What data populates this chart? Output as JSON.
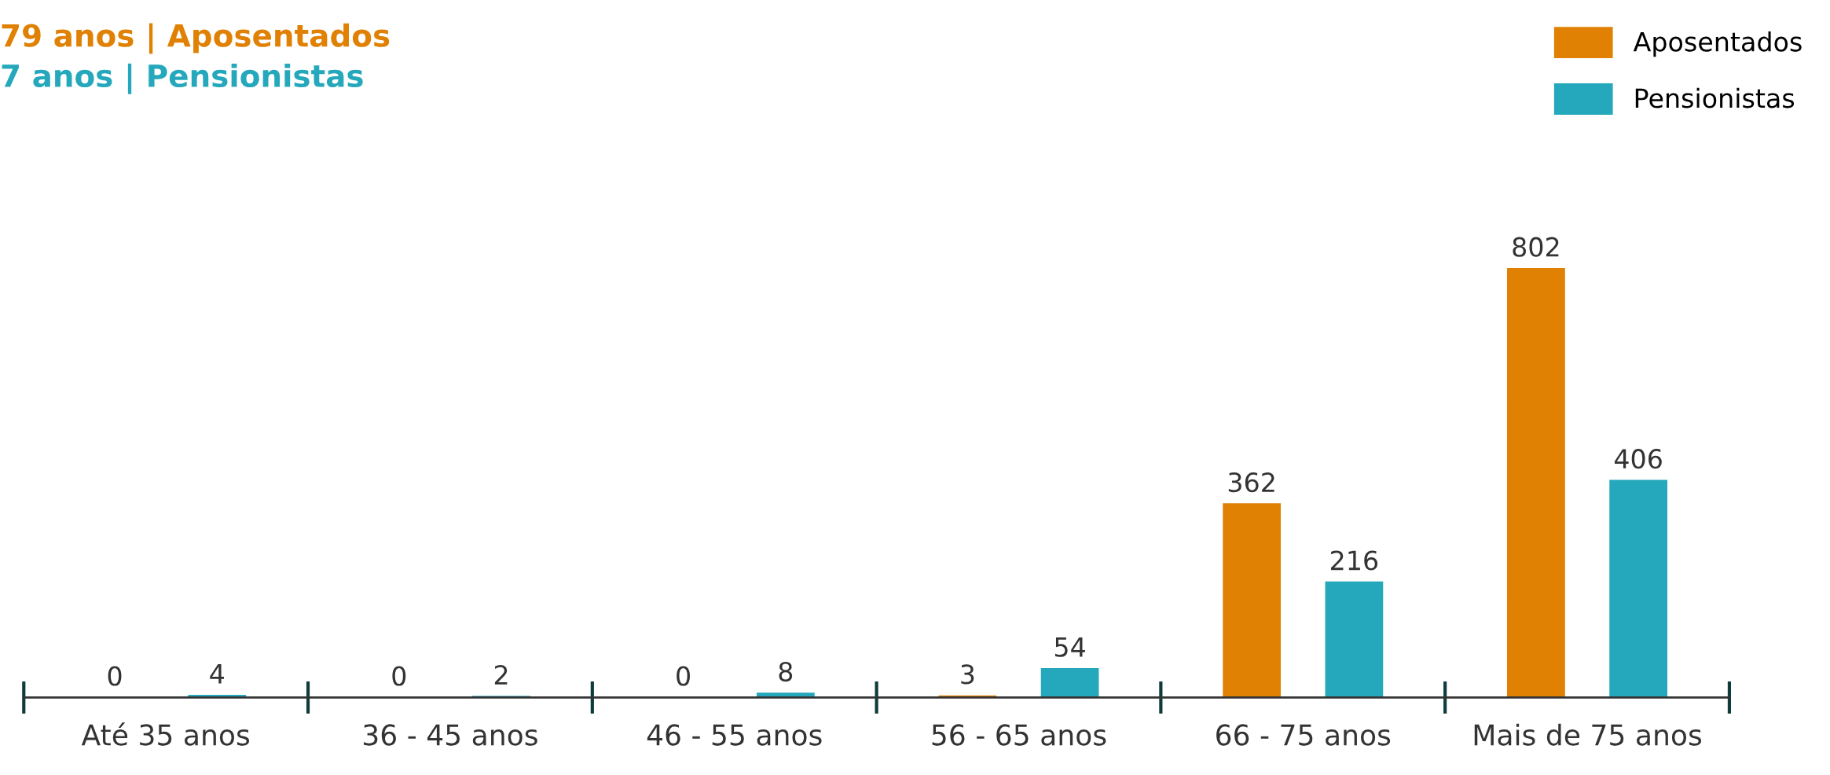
{
  "chart_data": {
    "type": "bar",
    "categories": [
      "Até 35 anos",
      "36 - 45 anos",
      "46 - 55 anos",
      "56 - 65 anos",
      "66 - 75 anos",
      "Mais de 75 anos"
    ],
    "series": [
      {
        "name": "Aposentados",
        "color": "#e08104",
        "values": [
          0,
          0,
          0,
          3,
          362,
          802
        ]
      },
      {
        "name": "Pensionistas",
        "color": "#25a8bc",
        "values": [
          4,
          2,
          8,
          54,
          216,
          406
        ]
      }
    ],
    "data_labels": true,
    "legend": "top right",
    "grid": false,
    "annotations": [
      "79 anos | Aposentados",
      "7 anos | Pensionistas"
    ]
  }
}
